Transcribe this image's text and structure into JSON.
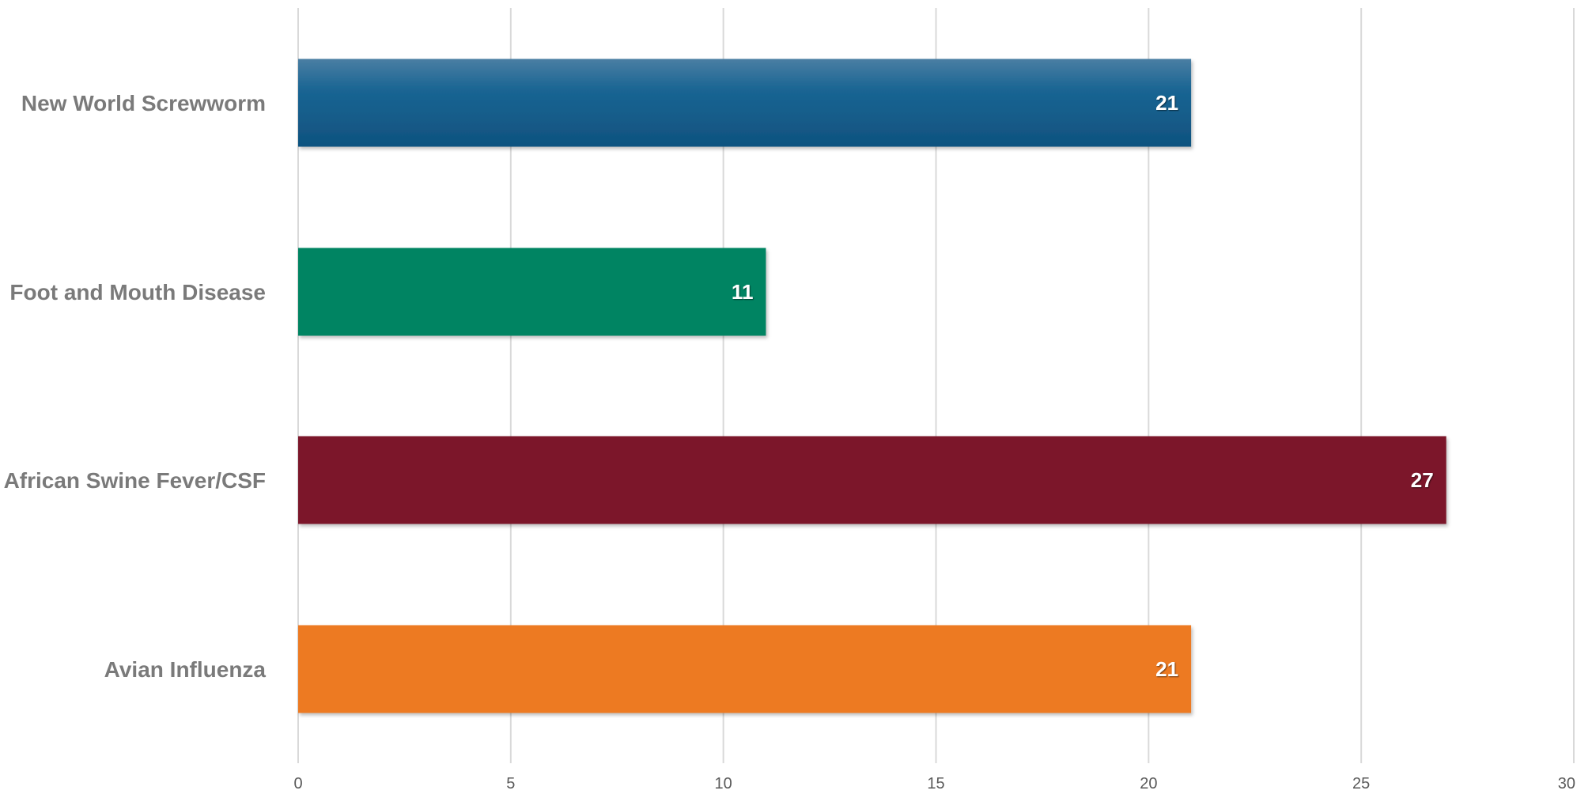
{
  "chart_data": {
    "type": "bar",
    "orientation": "horizontal",
    "title": "",
    "xlabel": "",
    "ylabel": "",
    "categories": [
      "New World Screwworm",
      "Foot and Mouth Disease",
      "African Swine Fever/CSF",
      "Avian Influenza"
    ],
    "values": [
      21,
      11,
      27,
      21
    ],
    "data_labels": [
      "21",
      "11",
      "27",
      "21"
    ],
    "colors": [
      "#1a5f8c",
      "#008462",
      "#7b172c",
      "#ed7a21"
    ],
    "xlim": [
      0,
      30
    ],
    "xticks": [
      0,
      5,
      10,
      15,
      20,
      25,
      30
    ],
    "xtick_labels": [
      "0",
      "5",
      "10",
      "15",
      "20",
      "25",
      "30"
    ],
    "grid": "vertical",
    "legend": "none"
  }
}
